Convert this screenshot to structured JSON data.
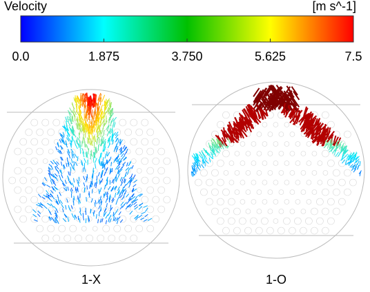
{
  "colorbar": {
    "title": "Velocity",
    "unit": "[m s^-1]",
    "ticks": [
      "0.0",
      "1.875",
      "3.750",
      "5.625",
      "7.5"
    ]
  },
  "panels": [
    {
      "label": "1-X"
    },
    {
      "label": "1-O"
    }
  ]
}
